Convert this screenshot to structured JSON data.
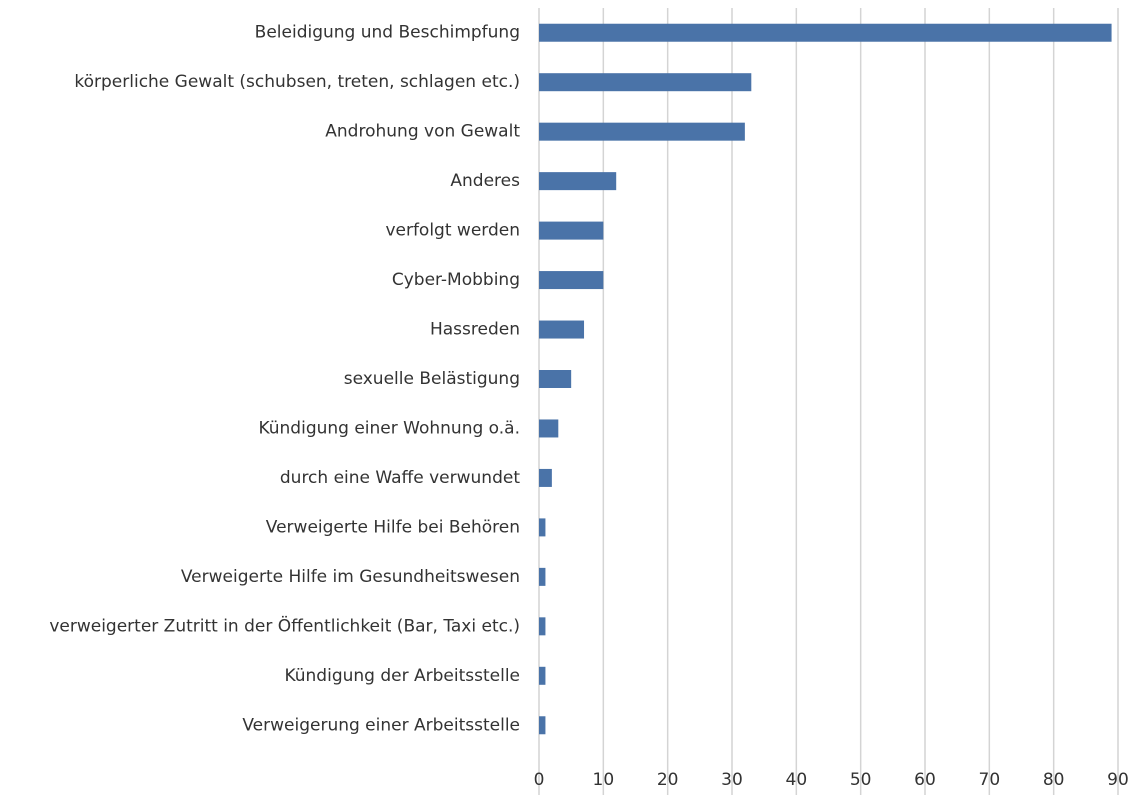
{
  "chart_data": {
    "type": "bar",
    "orientation": "horizontal",
    "categories": [
      "Beleidigung und Beschimpfung",
      "körperliche Gewalt (schubsen, treten, schlagen etc.)",
      "Androhung von Gewalt",
      "Anderes",
      "verfolgt werden",
      "Cyber-Mobbing",
      "Hassreden",
      "sexuelle Belästigung",
      "Kündigung einer Wohnung o.ä.",
      "durch eine Waffe verwundet",
      "Verweigerte Hilfe bei Behören",
      "Verweigerte Hilfe im Gesundheitswesen",
      "verweigerter Zutritt in der Öffentlichkeit (Bar, Taxi etc.)",
      "Kündigung der Arbeitsstelle",
      "Verweigerung einer Arbeitsstelle"
    ],
    "values": [
      89,
      33,
      32,
      12,
      10,
      10,
      7,
      5,
      3,
      2,
      1,
      1,
      1,
      1,
      1
    ],
    "color": "#4a73a8",
    "xlim": [
      0,
      90
    ],
    "xticks": [
      0,
      10,
      20,
      30,
      40,
      50,
      60,
      70,
      80,
      90
    ],
    "grid": true
  }
}
